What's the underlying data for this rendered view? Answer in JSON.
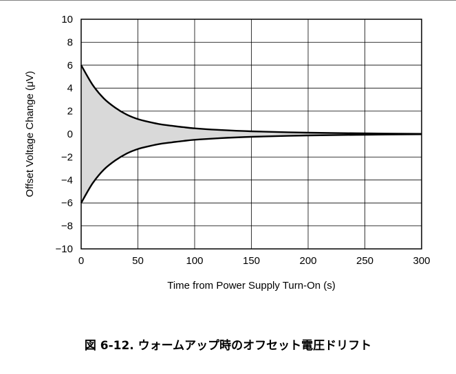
{
  "caption": "図 6-12. ウォームアップ時のオフセット電圧ドリフト",
  "chart_data": {
    "type": "area",
    "title": "",
    "xlabel": "Time from Power Supply Turn-On (s)",
    "ylabel": "Offset Voltage Change (μV)",
    "xlim": [
      0,
      300
    ],
    "ylim": [
      -10,
      10
    ],
    "xticks": [
      0,
      50,
      100,
      150,
      200,
      250,
      300
    ],
    "yticks": [
      10,
      8,
      6,
      4,
      2,
      0,
      -2,
      -4,
      -6,
      -8,
      -10
    ],
    "ytick_labels": [
      "10",
      "8",
      "6",
      "4",
      "2",
      "0",
      "−2",
      "−4",
      "−6",
      "−8",
      "−10"
    ],
    "grid": true,
    "fill_color": "#d9d9d9",
    "line_color": "#000000",
    "series": [
      {
        "x": [
          0,
          10,
          20,
          30,
          40,
          50,
          60,
          70,
          80,
          90,
          100,
          120,
          150,
          200,
          250,
          300
        ],
        "values": [
          6.0,
          4.3,
          3.1,
          2.3,
          1.7,
          1.3,
          1.05,
          0.85,
          0.72,
          0.6,
          0.5,
          0.37,
          0.24,
          0.12,
          0.06,
          0.02
        ]
      },
      {
        "x": [
          0,
          10,
          20,
          30,
          40,
          50,
          60,
          70,
          80,
          90,
          100,
          120,
          150,
          200,
          250,
          300
        ],
        "values": [
          -6.0,
          -4.3,
          -3.1,
          -2.3,
          -1.7,
          -1.3,
          -1.05,
          -0.85,
          -0.72,
          -0.6,
          -0.5,
          -0.37,
          -0.24,
          -0.12,
          -0.06,
          -0.02
        ]
      }
    ]
  }
}
